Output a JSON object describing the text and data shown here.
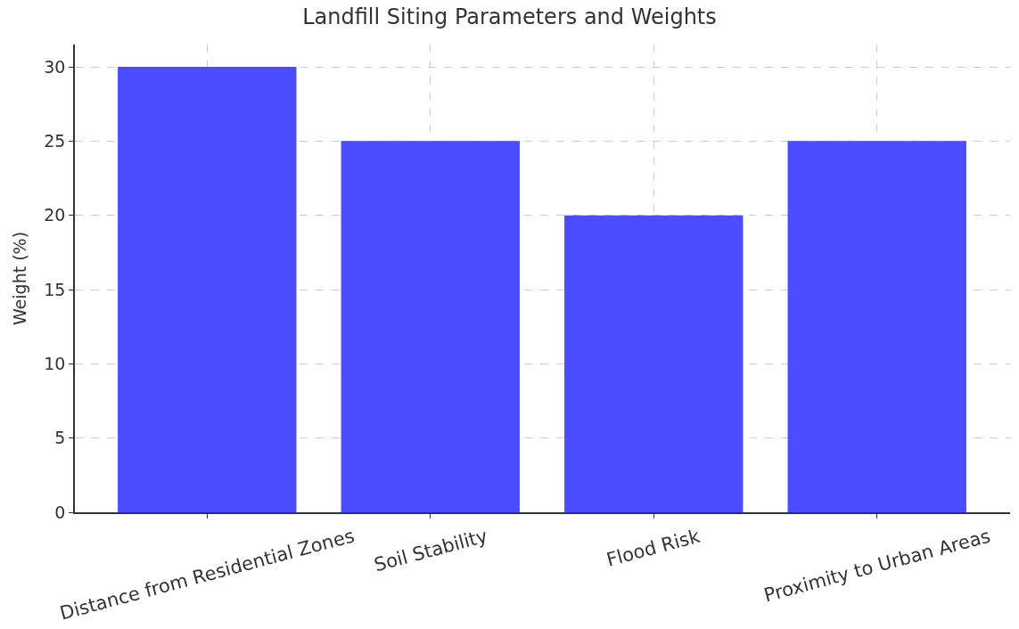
{
  "chart_data": {
    "type": "bar",
    "title": "Landfill Siting Parameters and Weights",
    "ylabel": "Weight (%)",
    "categories": [
      "Distance from Residential Zones",
      "Soil Stability",
      "Flood Risk",
      "Proximity to Urban Areas"
    ],
    "values": [
      30,
      25,
      20,
      25
    ],
    "color": "#4b4bff",
    "ylim": [
      0,
      31.5
    ],
    "yticks": [
      0,
      5,
      10,
      15,
      20,
      25,
      30
    ],
    "grid": true
  }
}
